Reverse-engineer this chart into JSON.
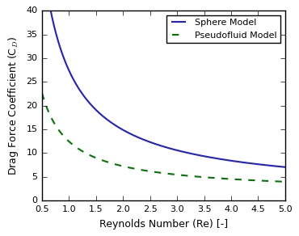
{
  "xlim": [
    0.5,
    5.0
  ],
  "ylim": [
    0,
    40
  ],
  "xticks": [
    0.5,
    1.0,
    1.5,
    2.0,
    2.5,
    3.0,
    3.5,
    4.0,
    4.5,
    5.0
  ],
  "yticks": [
    0,
    5,
    10,
    15,
    20,
    25,
    30,
    35,
    40
  ],
  "xlabel": "Reynolds Number (Re) [-]",
  "ylabel": "Drag Force Coefficient (C$_D$)",
  "sphere_color": "#2020cc",
  "pseudofluid_color": "#007700",
  "sphere_label": "Sphere Model",
  "pseudofluid_label": "Pseudofluid Model",
  "legend_loc": "upper right",
  "figsize": [
    3.7,
    2.92
  ],
  "dpi": 100,
  "sphere_a": 24.0,
  "sphere_b": 6.0,
  "sphere_c": 0.4,
  "pseudo_a": 10.0,
  "pseudo_b": 2.5,
  "pseudo_c": 1.2
}
